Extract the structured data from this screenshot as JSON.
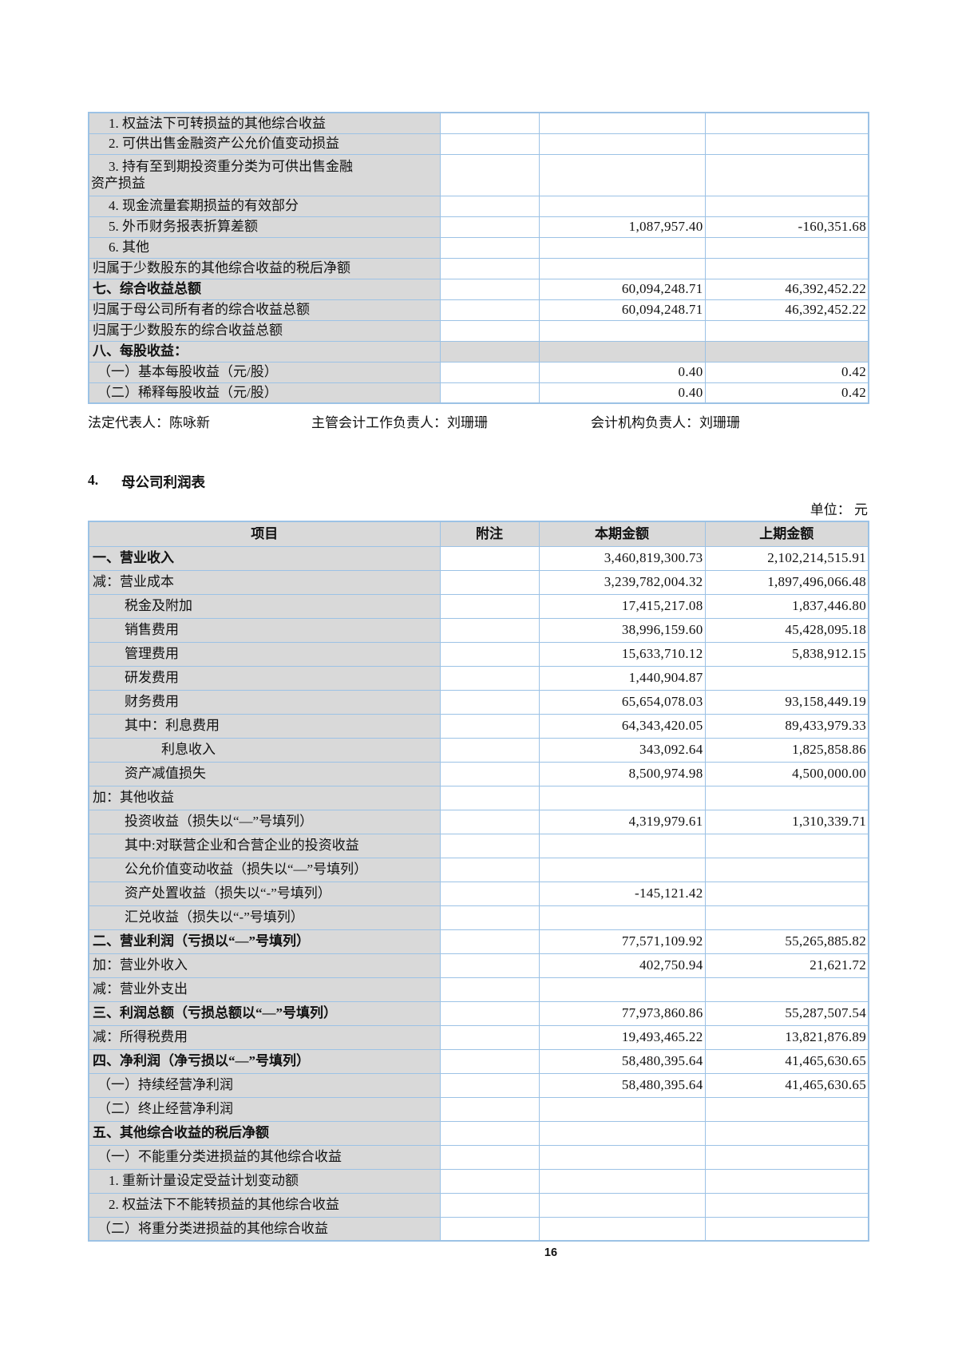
{
  "colors": {
    "table_border": "#9cc2e5",
    "cell_shade": "#d9d9d9"
  },
  "consolidated_income_statement_continued": {
    "rows": [
      {
        "label": "1. 权益法下可转损益的其他综合收益",
        "indent": 2,
        "bold": false,
        "note": "",
        "current": "",
        "prior": "",
        "shade_all": false,
        "tall": false
      },
      {
        "label": "2. 可供出售金融资产公允价值变动损益",
        "indent": 2,
        "bold": false,
        "note": "",
        "current": "",
        "prior": "",
        "shade_all": false,
        "tall": false
      },
      {
        "label": "3. 持有至到期投资重分类为可供出售金融\n资产损益",
        "indent": 2,
        "bold": false,
        "note": "",
        "current": "",
        "prior": "",
        "shade_all": false,
        "tall": true
      },
      {
        "label": "4. 现金流量套期损益的有效部分",
        "indent": 2,
        "bold": false,
        "note": "",
        "current": "",
        "prior": "",
        "shade_all": false,
        "tall": false
      },
      {
        "label": "5. 外币财务报表折算差额",
        "indent": 2,
        "bold": false,
        "note": "",
        "current": "1,087,957.40",
        "prior": "-160,351.68",
        "shade_all": false,
        "tall": false
      },
      {
        "label": "6. 其他",
        "indent": 2,
        "bold": false,
        "note": "",
        "current": "",
        "prior": "",
        "shade_all": false,
        "tall": false
      },
      {
        "label": "归属于少数股东的其他综合收益的税后净额",
        "indent": 0,
        "bold": false,
        "note": "",
        "current": "",
        "prior": "",
        "shade_all": false,
        "tall": false
      },
      {
        "label": "七、综合收益总额",
        "indent": 0,
        "bold": true,
        "note": "",
        "current": "60,094,248.71",
        "prior": "46,392,452.22",
        "shade_all": false,
        "tall": false
      },
      {
        "label": "归属于母公司所有者的综合收益总额",
        "indent": 0,
        "bold": false,
        "note": "",
        "current": "60,094,248.71",
        "prior": "46,392,452.22",
        "shade_all": false,
        "tall": false
      },
      {
        "label": "归属于少数股东的综合收益总额",
        "indent": 0,
        "bold": false,
        "note": "",
        "current": "",
        "prior": "",
        "shade_all": false,
        "tall": false
      },
      {
        "label": "八、每股收益：",
        "indent": 0,
        "bold": true,
        "note": "",
        "current": "",
        "prior": "",
        "shade_all": true,
        "tall": false
      },
      {
        "label": "（一）基本每股收益（元/股）",
        "indent": 1,
        "bold": false,
        "note": "",
        "current": "0.40",
        "prior": "0.42",
        "shade_all": false,
        "tall": false
      },
      {
        "label": "（二）稀释每股收益（元/股）",
        "indent": 1,
        "bold": false,
        "note": "",
        "current": "0.40",
        "prior": "0.42",
        "shade_all": false,
        "tall": false
      }
    ]
  },
  "signatures": {
    "legal_representative": "法定代表人：陈咏新",
    "chief_accounting_officer": "主管会计工作负责人：刘珊珊",
    "accounting_department_head": "会计机构负责人：刘珊珊"
  },
  "section": {
    "number": "4.",
    "title": "母公司利润表"
  },
  "unit_label": "单位： 元",
  "parent_income_statement": {
    "columns": [
      "项目",
      "附注",
      "本期金额",
      "上期金额"
    ],
    "rows": [
      {
        "label": "一、营业收入",
        "indent": 0,
        "bold": true,
        "note": "",
        "current": "3,460,819,300.73",
        "prior": "2,102,214,515.91",
        "shade_all": false,
        "tall": false
      },
      {
        "label": "减：营业成本",
        "indent": 0,
        "bold": false,
        "note": "",
        "current": "3,239,782,004.32",
        "prior": "1,897,496,066.48",
        "shade_all": false,
        "tall": false
      },
      {
        "label": "税金及附加",
        "indent": 3,
        "bold": false,
        "note": "",
        "current": "17,415,217.08",
        "prior": "1,837,446.80",
        "shade_all": false,
        "tall": false
      },
      {
        "label": "销售费用",
        "indent": 3,
        "bold": false,
        "note": "",
        "current": "38,996,159.60",
        "prior": "45,428,095.18",
        "shade_all": false,
        "tall": false
      },
      {
        "label": "管理费用",
        "indent": 3,
        "bold": false,
        "note": "",
        "current": "15,633,710.12",
        "prior": "5,838,912.15",
        "shade_all": false,
        "tall": false
      },
      {
        "label": "研发费用",
        "indent": 3,
        "bold": false,
        "note": "",
        "current": "1,440,904.87",
        "prior": "",
        "shade_all": false,
        "tall": false
      },
      {
        "label": "财务费用",
        "indent": 3,
        "bold": false,
        "note": "",
        "current": "65,654,078.03",
        "prior": "93,158,449.19",
        "shade_all": false,
        "tall": false
      },
      {
        "label": "其中：利息费用",
        "indent": 3,
        "bold": false,
        "note": "",
        "current": "64,343,420.05",
        "prior": "89,433,979.33",
        "shade_all": false,
        "tall": false
      },
      {
        "label": "利息收入",
        "indent": 4,
        "bold": false,
        "note": "",
        "current": "343,092.64",
        "prior": "1,825,858.86",
        "shade_all": false,
        "tall": false
      },
      {
        "label": "资产减值损失",
        "indent": 3,
        "bold": false,
        "note": "",
        "current": "8,500,974.98",
        "prior": "4,500,000.00",
        "shade_all": false,
        "tall": false
      },
      {
        "label": "加：其他收益",
        "indent": 0,
        "bold": false,
        "note": "",
        "current": "",
        "prior": "",
        "shade_all": false,
        "tall": false
      },
      {
        "label": "投资收益（损失以“—”号填列）",
        "indent": 3,
        "bold": false,
        "note": "",
        "current": "4,319,979.61",
        "prior": "1,310,339.71",
        "shade_all": false,
        "tall": false
      },
      {
        "label": "其中:对联营企业和合营企业的投资收益",
        "indent": 3,
        "bold": false,
        "note": "",
        "current": "",
        "prior": "",
        "shade_all": false,
        "tall": false
      },
      {
        "label": "公允价值变动收益（损失以“—”号填列）",
        "indent": 3,
        "bold": false,
        "note": "",
        "current": "",
        "prior": "",
        "shade_all": false,
        "tall": false
      },
      {
        "label": "资产处置收益（损失以“-”号填列）",
        "indent": 3,
        "bold": false,
        "note": "",
        "current": "-145,121.42",
        "prior": "",
        "shade_all": false,
        "tall": false
      },
      {
        "label": "汇兑收益（损失以“-”号填列）",
        "indent": 3,
        "bold": false,
        "note": "",
        "current": "",
        "prior": "",
        "shade_all": false,
        "tall": false
      },
      {
        "label": "二、营业利润（亏损以“—”号填列）",
        "indent": 0,
        "bold": true,
        "note": "",
        "current": "77,571,109.92",
        "prior": "55,265,885.82",
        "shade_all": false,
        "tall": false
      },
      {
        "label": "加：营业外收入",
        "indent": 0,
        "bold": false,
        "note": "",
        "current": "402,750.94",
        "prior": "21,621.72",
        "shade_all": false,
        "tall": false
      },
      {
        "label": "减：营业外支出",
        "indent": 0,
        "bold": false,
        "note": "",
        "current": "",
        "prior": "",
        "shade_all": false,
        "tall": false
      },
      {
        "label": "三、利润总额（亏损总额以“—”号填列）",
        "indent": 0,
        "bold": true,
        "note": "",
        "current": "77,973,860.86",
        "prior": "55,287,507.54",
        "shade_all": false,
        "tall": false
      },
      {
        "label": "减：所得税费用",
        "indent": 0,
        "bold": false,
        "note": "",
        "current": "19,493,465.22",
        "prior": "13,821,876.89",
        "shade_all": false,
        "tall": false
      },
      {
        "label": "四、净利润（净亏损以“—”号填列）",
        "indent": 0,
        "bold": true,
        "note": "",
        "current": "58,480,395.64",
        "prior": "41,465,630.65",
        "shade_all": false,
        "tall": false
      },
      {
        "label": "（一）持续经营净利润",
        "indent": 1,
        "bold": false,
        "note": "",
        "current": "58,480,395.64",
        "prior": "41,465,630.65",
        "shade_all": false,
        "tall": false
      },
      {
        "label": "（二）终止经营净利润",
        "indent": 1,
        "bold": false,
        "note": "",
        "current": "",
        "prior": "",
        "shade_all": false,
        "tall": false
      },
      {
        "label": "五、其他综合收益的税后净额",
        "indent": 0,
        "bold": true,
        "note": "",
        "current": "",
        "prior": "",
        "shade_all": false,
        "tall": false
      },
      {
        "label": "（一）不能重分类进损益的其他综合收益",
        "indent": 1,
        "bold": false,
        "note": "",
        "current": "",
        "prior": "",
        "shade_all": false,
        "tall": false
      },
      {
        "label": "1. 重新计量设定受益计划变动额",
        "indent": 2,
        "bold": false,
        "note": "",
        "current": "",
        "prior": "",
        "shade_all": false,
        "tall": false
      },
      {
        "label": "2. 权益法下不能转损益的其他综合收益",
        "indent": 2,
        "bold": false,
        "note": "",
        "current": "",
        "prior": "",
        "shade_all": false,
        "tall": false
      },
      {
        "label": "（二）将重分类进损益的其他综合收益",
        "indent": 1,
        "bold": false,
        "note": "",
        "current": "",
        "prior": "",
        "shade_all": false,
        "tall": false
      }
    ]
  },
  "page_number": "16"
}
